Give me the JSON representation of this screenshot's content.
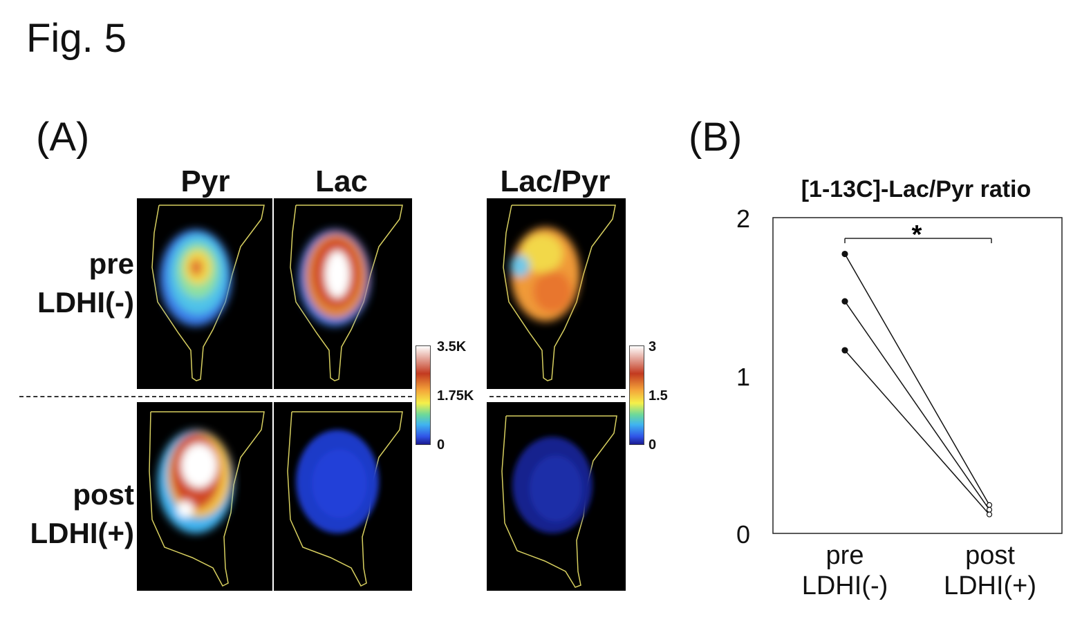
{
  "figure": {
    "title": "Fig. 5",
    "panel_a_label": "(A)",
    "panel_b_label": "(B)"
  },
  "panel_a": {
    "columns": [
      "Pyr",
      "Lac",
      "Lac/Pyr"
    ],
    "rows": [
      {
        "line1": "pre",
        "line2": "LDHI(-)"
      },
      {
        "line1": "post",
        "line2": "LDHI(+)"
      }
    ],
    "colorbar_signal": {
      "max": "3.5K",
      "mid": "1.75K",
      "min": "0"
    },
    "colorbar_ratio": {
      "max": "3",
      "mid": "1.5",
      "min": "0"
    }
  },
  "chart_data": {
    "type": "line",
    "title": "[1-13C]-Lac/Pyr ratio",
    "categories": [
      [
        "pre",
        "LDHI(-)"
      ],
      [
        "post",
        "LDHI(+)"
      ]
    ],
    "series": [
      {
        "values": [
          1.77,
          0.18
        ]
      },
      {
        "values": [
          1.47,
          0.15
        ]
      },
      {
        "values": [
          1.16,
          0.12
        ]
      }
    ],
    "ylim": [
      0,
      2
    ],
    "yticks": [
      "0",
      "1",
      "2"
    ],
    "significance": "*",
    "marker_pre": "filled-circle",
    "marker_post": "open-circle"
  }
}
